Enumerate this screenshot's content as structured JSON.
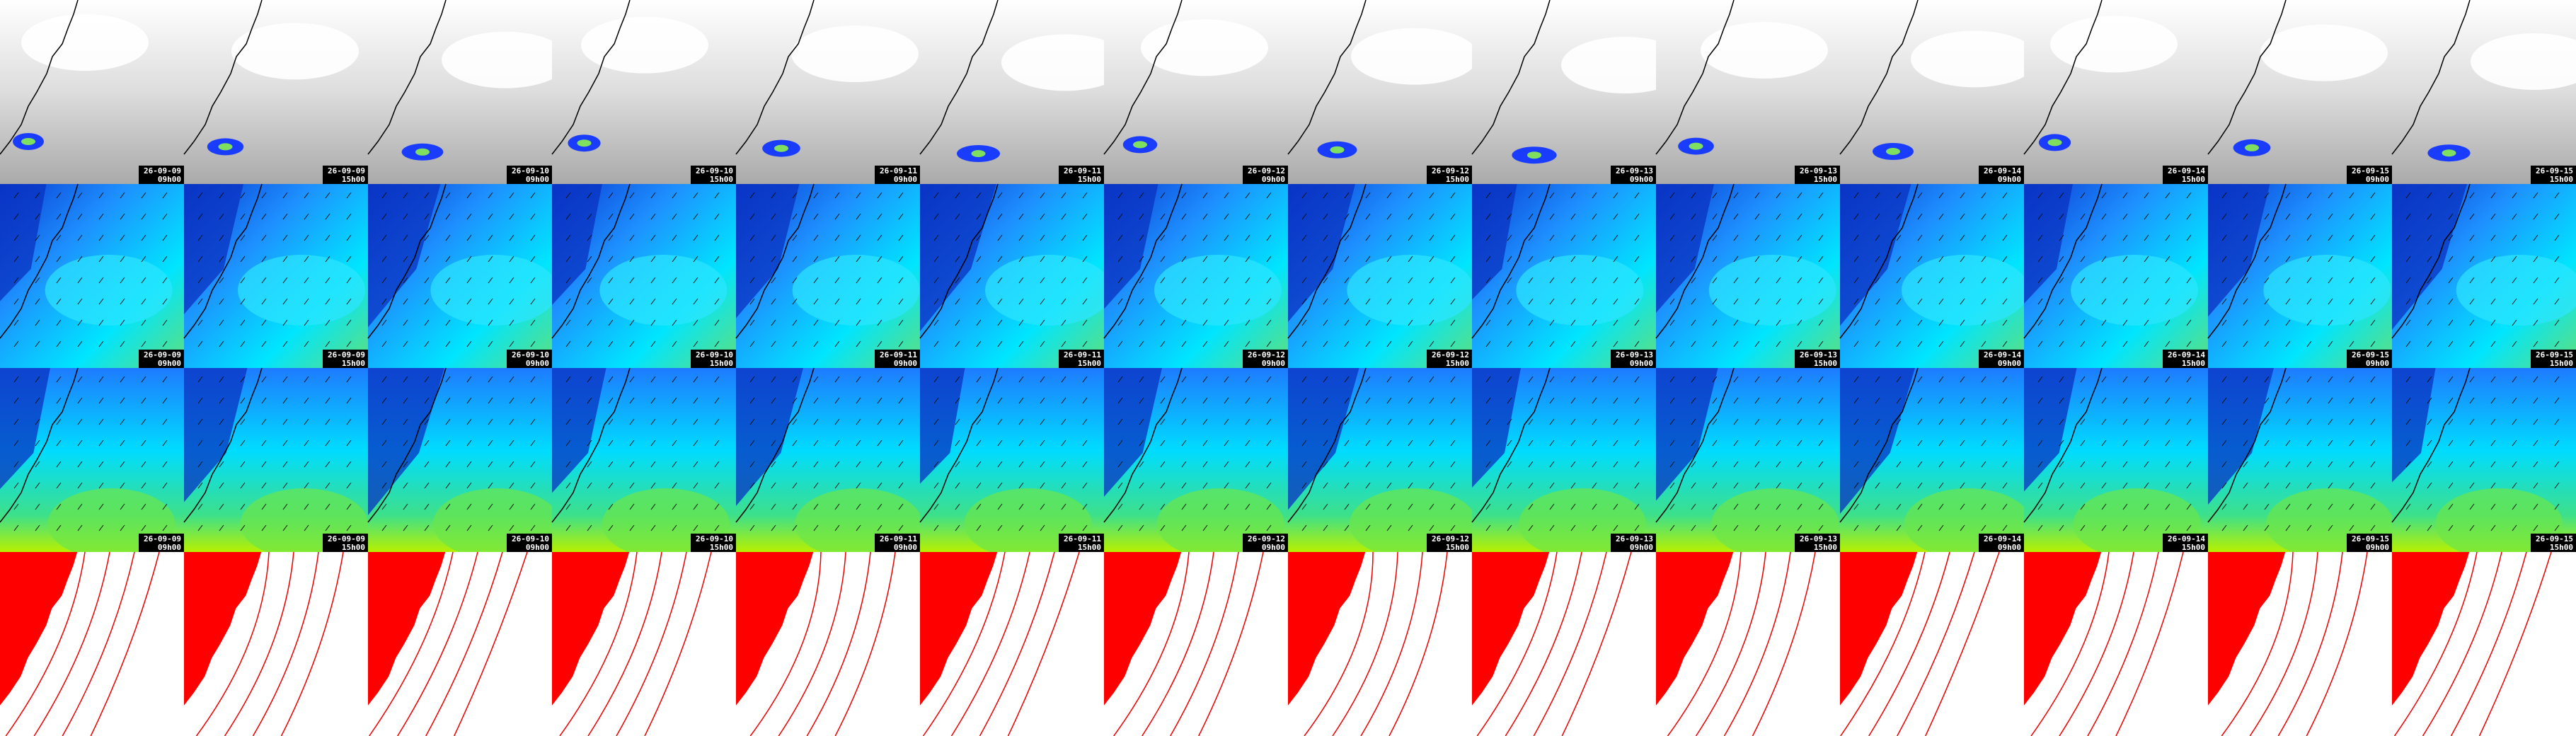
{
  "panels": {
    "dates": [
      "26-09-09",
      "26-09-09",
      "26-09-10",
      "26-09-10",
      "26-09-11",
      "26-09-11",
      "26-09-12",
      "26-09-12",
      "26-09-13",
      "26-09-13",
      "26-09-14",
      "26-09-14",
      "26-09-15",
      "26-09-15"
    ],
    "times": [
      "09h00",
      "15h00",
      "09h00",
      "15h00",
      "09h00",
      "15h00",
      "09h00",
      "15h00",
      "09h00",
      "15h00",
      "09h00",
      "15h00",
      "09h00",
      "15h00"
    ]
  }
}
